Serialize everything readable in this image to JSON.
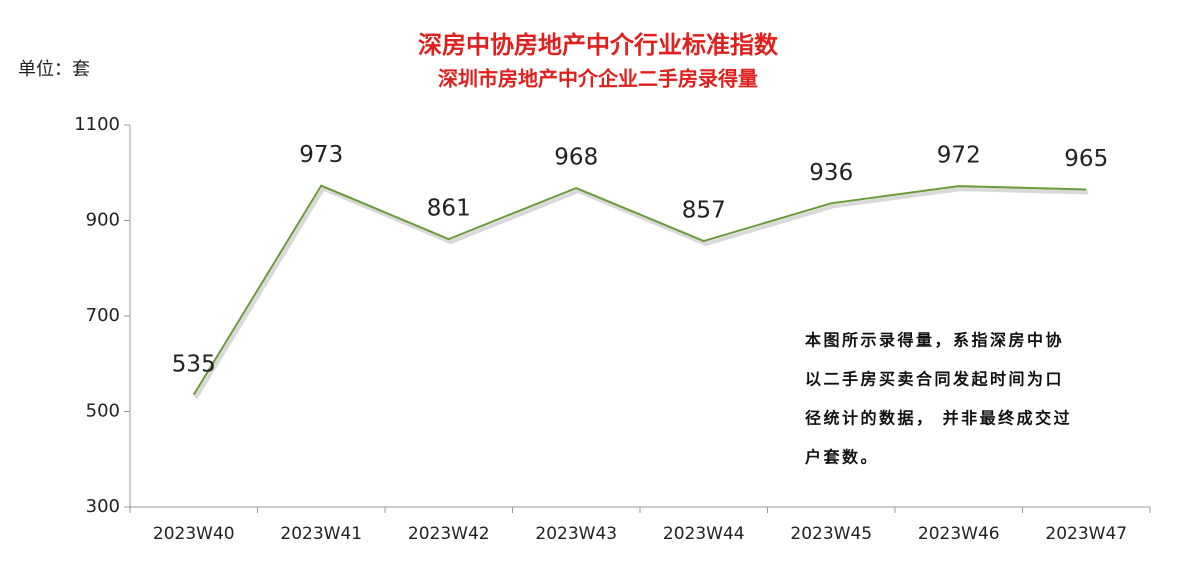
{
  "chart_data": {
    "type": "line",
    "title": "深房中协房地产中介行业标准指数",
    "subtitle": "深圳市房地产中介企业二手房录得量",
    "unit_label": "单位：套",
    "categories": [
      "2023W40",
      "2023W41",
      "2023W42",
      "2023W43",
      "2023W44",
      "2023W45",
      "2023W46",
      "2023W47"
    ],
    "values": [
      535,
      973,
      861,
      968,
      857,
      936,
      972,
      965
    ],
    "color": "#6b9a3c",
    "ylim": [
      300,
      1100
    ],
    "yticks": [
      300,
      500,
      700,
      900,
      1100
    ],
    "grid": false,
    "annotation": [
      "本图所示录得量，系指深房中协",
      "以二手房买卖合同发起时间为口",
      "径统计的数据， 并非最终成交过",
      "户套数。"
    ]
  }
}
